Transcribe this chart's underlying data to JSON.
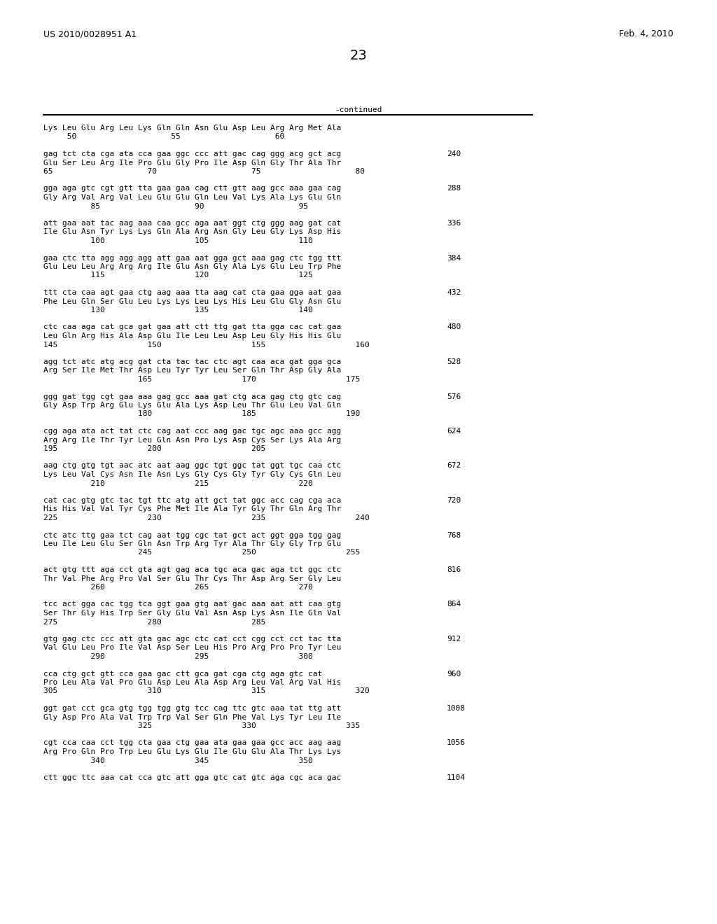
{
  "header_left": "US 2010/0028951 A1",
  "header_right": "Feb. 4, 2010",
  "page_number": "23",
  "continued_label": "-continued",
  "background_color": "#ffffff",
  "blocks": [
    {
      "type": "aa_only",
      "aa": "Lys Leu Glu Arg Leu Lys Gln Gln Asn Glu Asp Leu Arg Arg Met Ala",
      "pos": "     50                    55                    60",
      "num": ""
    },
    {
      "type": "full",
      "dna": "gag tct cta cga ata cca gaa ggc ccc att gac cag ggg acg gct acg",
      "aa": "Glu Ser Leu Arg Ile Pro Glu Gly Pro Ile Asp Gln Gly Thr Ala Thr",
      "pos": "65                    70                    75                    80",
      "num": "240"
    },
    {
      "type": "full",
      "dna": "gga aga gtc cgt gtt tta gaa gaa cag ctt gtt aag gcc aaa gaa cag",
      "aa": "Gly Arg Val Arg Val Leu Glu Glu Gln Leu Val Lys Ala Lys Glu Gln",
      "pos": "          85                    90                    95",
      "num": "288"
    },
    {
      "type": "full",
      "dna": "att gaa aat tac aag aaa caa gcc aga aat ggt ctg ggg aag gat cat",
      "aa": "Ile Glu Asn Tyr Lys Lys Gln Ala Arg Asn Gly Leu Gly Lys Asp His",
      "pos": "          100                   105                   110",
      "num": "336"
    },
    {
      "type": "full",
      "dna": "gaa ctc tta agg agg agg att gaa aat gga gct aaa gag ctc tgg ttt",
      "aa": "Glu Leu Leu Arg Arg Arg Ile Glu Asn Gly Ala Lys Glu Leu Trp Phe",
      "pos": "          115                   120                   125",
      "num": "384"
    },
    {
      "type": "full",
      "dna": "ttt cta caa agt gaa ctg aag aaa tta aag cat cta gaa gga aat gaa",
      "aa": "Phe Leu Gln Ser Glu Leu Lys Lys Leu Lys His Leu Glu Gly Asn Glu",
      "pos": "          130                   135                   140",
      "num": "432"
    },
    {
      "type": "full",
      "dna": "ctc caa aga cat gca gat gaa att ctt ttg gat tta gga cac cat gaa",
      "aa": "Leu Gln Arg His Ala Asp Glu Ile Leu Leu Asp Leu Gly His His Glu",
      "pos": "145                   150                   155                   160",
      "num": "480"
    },
    {
      "type": "full",
      "dna": "agg tct atc atg acg gat cta tac tac ctc agt caa aca gat gga gca",
      "aa": "Arg Ser Ile Met Thr Asp Leu Tyr Tyr Leu Ser Gln Thr Asp Gly Ala",
      "pos": "                    165                   170                   175",
      "num": "528"
    },
    {
      "type": "full",
      "dna": "ggg gat tgg cgt gaa aaa gag gcc aaa gat ctg aca gag ctg gtc cag",
      "aa": "Gly Asp Trp Arg Glu Lys Glu Ala Lys Asp Leu Thr Glu Leu Val Gln",
      "pos": "                    180                   185                   190",
      "num": "576"
    },
    {
      "type": "full",
      "dna": "cgg aga ata act tat ctc cag aat ccc aag gac tgc agc aaa gcc agg",
      "aa": "Arg Arg Ile Thr Tyr Leu Gln Asn Pro Lys Asp Cys Ser Lys Ala Arg",
      "pos": "195                   200                   205",
      "num": "624"
    },
    {
      "type": "full",
      "dna": "aag ctg gtg tgt aac atc aat aag ggc tgt ggc tat ggt tgc caa ctc",
      "aa": "Lys Leu Val Cys Asn Ile Asn Lys Gly Cys Gly Tyr Gly Cys Gln Leu",
      "pos": "          210                   215                   220",
      "num": "672"
    },
    {
      "type": "full",
      "dna": "cat cac gtg gtc tac tgt ttc atg att gct tat ggc acc cag cga aca",
      "aa": "His His Val Val Tyr Cys Phe Met Ile Ala Tyr Gly Thr Gln Arg Thr",
      "pos": "225                   230                   235                   240",
      "num": "720"
    },
    {
      "type": "full",
      "dna": "ctc atc ttg gaa tct cag aat tgg cgc tat gct act ggt gga tgg gag",
      "aa": "Leu Ile Leu Glu Ser Gln Asn Trp Arg Tyr Ala Thr Gly Gly Trp Glu",
      "pos": "                    245                   250                   255",
      "num": "768"
    },
    {
      "type": "full",
      "dna": "act gtg ttt aga cct gta agt gag aca tgc aca gac aga tct ggc ctc",
      "aa": "Thr Val Phe Arg Pro Val Ser Glu Thr Cys Thr Asp Arg Ser Gly Leu",
      "pos": "          260                   265                   270",
      "num": "816"
    },
    {
      "type": "full",
      "dna": "tcc act gga cac tgg tca ggt gaa gtg aat gac aaa aat att caa gtg",
      "aa": "Ser Thr Gly His Trp Ser Gly Glu Val Asn Asp Lys Asn Ile Gln Val",
      "pos": "275                   280                   285",
      "num": "864"
    },
    {
      "type": "full",
      "dna": "gtg gag ctc ccc att gta gac agc ctc cat cct cgg cct cct tac tta",
      "aa": "Val Glu Leu Pro Ile Val Asp Ser Leu His Pro Arg Pro Pro Tyr Leu",
      "pos": "          290                   295                   300",
      "num": "912"
    },
    {
      "type": "full",
      "dna": "cca ctg gct gtt cca gaa gac ctt gca gat cga ctg aga gtc cat",
      "aa": "Pro Leu Ala Val Pro Glu Asp Leu Ala Asp Arg Leu Val Arg Val His",
      "pos": "305                   310                   315                   320",
      "num": "960"
    },
    {
      "type": "full",
      "dna": "ggt gat cct gca gtg tgg tgg gtg tcc cag ttc gtc aaa tat ttg att",
      "aa": "Gly Asp Pro Ala Val Trp Trp Val Ser Gln Phe Val Lys Tyr Leu Ile",
      "pos": "                    325                   330                   335",
      "num": "1008"
    },
    {
      "type": "full",
      "dna": "cgt cca caa cct tgg cta gaa ctg gaa ata gaa gaa gcc acc aag aag",
      "aa": "Arg Pro Gln Pro Trp Leu Glu Lys Glu Ile Glu Glu Ala Thr Lys Lys",
      "pos": "          340                   345                   350",
      "num": "1056"
    },
    {
      "type": "dna_only",
      "dna": "ctt ggc ttc aaa cat cca gtc att gga gtc cat gtc aga cgc aca gac",
      "aa": "",
      "pos": "",
      "num": "1104"
    }
  ]
}
